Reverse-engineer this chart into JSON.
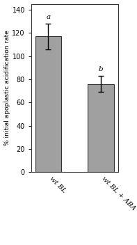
{
  "categories": [
    "wt BL",
    "wt BL + ABA"
  ],
  "values": [
    117,
    76
  ],
  "errors": [
    11,
    7
  ],
  "bar_color": "#a0a0a0",
  "bar_edgecolor": "#333333",
  "ylabel": "% initial apoplastic acidification rate",
  "ylim": [
    0,
    145
  ],
  "yticks": [
    0,
    20,
    40,
    60,
    80,
    100,
    120,
    140
  ],
  "stat_labels": [
    "a",
    "b"
  ],
  "plot_bg_color": "#ffffff",
  "figure_facecolor": "#ffffff",
  "bar_width": 0.5,
  "title": ""
}
